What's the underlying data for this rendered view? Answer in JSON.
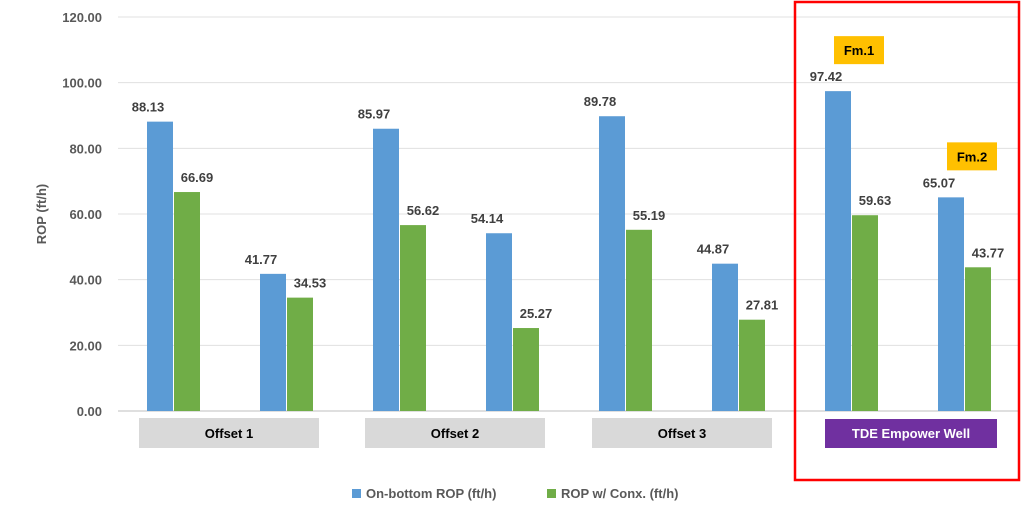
{
  "chart_data": {
    "type": "bar",
    "ylabel": "ROP (ft/h)",
    "ylim": [
      0,
      120
    ],
    "yticks": [
      "0.00",
      "20.00",
      "40.00",
      "60.00",
      "80.00",
      "100.00",
      "120.00"
    ],
    "grid": true,
    "legend_position": "bottom",
    "groups": [
      {
        "label": "Offset 1",
        "label_bg": "#d9d9d9",
        "label_color": "#000000"
      },
      {
        "label": "Offset 2",
        "label_bg": "#d9d9d9",
        "label_color": "#000000"
      },
      {
        "label": "Offset 3",
        "label_bg": "#d9d9d9",
        "label_color": "#000000"
      },
      {
        "label": "TDE Empower Well",
        "label_bg": "#7030a0",
        "label_color": "#ffffff",
        "highlighted": true
      }
    ],
    "series": [
      {
        "name": "On-bottom ROP (ft/h)",
        "color": "#5b9bd5",
        "values": [
          88.13,
          41.77,
          85.97,
          54.14,
          89.78,
          44.87,
          97.42,
          65.07
        ],
        "labels": [
          "88.13",
          "41.77",
          "85.97",
          "54.14",
          "89.78",
          "44.87",
          "97.42",
          "65.07"
        ]
      },
      {
        "name": "ROP w/ Conx. (ft/h)",
        "color": "#70ad47",
        "values": [
          66.69,
          34.53,
          56.62,
          25.27,
          55.19,
          27.81,
          59.63,
          43.77
        ],
        "labels": [
          "66.69",
          "34.53",
          "56.62",
          "25.27",
          "55.19",
          "27.81",
          "59.63",
          "43.77"
        ]
      }
    ],
    "annotations": [
      {
        "text": "Fm.1",
        "bar_index": 6,
        "color": "#ffc000"
      },
      {
        "text": "Fm.2",
        "bar_index": 7,
        "color": "#ffc000"
      }
    ],
    "highlight_color": "#ff0000"
  }
}
